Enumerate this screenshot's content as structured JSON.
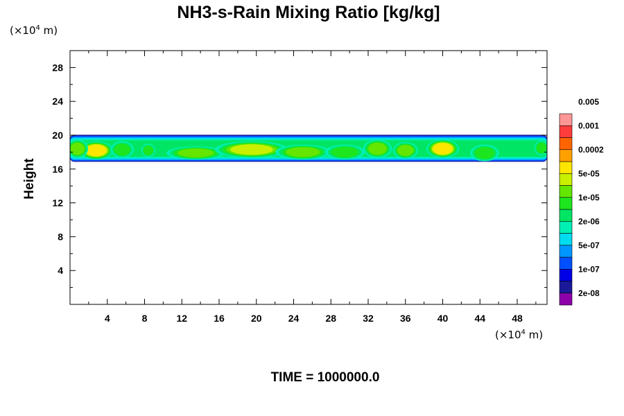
{
  "chart_data": {
    "type": "heatmap",
    "title": "NH3-s-Rain Mixing Ratio [kg/kg]",
    "ylabel": "Height",
    "xlabel": "",
    "x_unit": {
      "prefix": "(×10",
      "exp": "4",
      "suffix": " m)"
    },
    "y_unit": {
      "prefix": "(×10",
      "exp": "4",
      "suffix": " m)"
    },
    "xlim": [
      0,
      51.2
    ],
    "ylim": [
      0,
      30
    ],
    "x_ticks": [
      4,
      8,
      12,
      16,
      20,
      24,
      28,
      32,
      36,
      40,
      44,
      48
    ],
    "y_ticks": [
      4,
      8,
      12,
      16,
      20,
      24,
      28
    ],
    "x_minor_step": 2,
    "y_minor_step": 2,
    "colorbar": {
      "colors": [
        "#8c00aa",
        "#1a1a99",
        "#0000e6",
        "#0050ff",
        "#0096ff",
        "#00dcf0",
        "#00f0b4",
        "#00e664",
        "#1ee61e",
        "#64e600",
        "#c8f000",
        "#ffe600",
        "#ffa000",
        "#ff6400",
        "#ff3c3c",
        "#ff9696"
      ],
      "labels": [
        "2e-08",
        "1e-07",
        "5e-07",
        "2e-06",
        "1e-05",
        "5e-05",
        "0.0002",
        "0.001",
        "0.005"
      ]
    },
    "layer": {
      "bottom_height": 17.2,
      "top_height": 19.6,
      "peak_value": "5e-05",
      "cells": [
        {
          "x": 2.8,
          "y": 18.2,
          "rx": 1.7,
          "ry": 1.0,
          "level": 11
        },
        {
          "x": 0.8,
          "y": 18.4,
          "rx": 1.0,
          "ry": 1.0,
          "level": 9
        },
        {
          "x": 5.6,
          "y": 18.3,
          "rx": 1.1,
          "ry": 0.9,
          "level": 8
        },
        {
          "x": 8.4,
          "y": 18.2,
          "rx": 0.6,
          "ry": 0.7,
          "level": 8
        },
        {
          "x": 13.5,
          "y": 17.9,
          "rx": 3.0,
          "ry": 0.7,
          "level": 9
        },
        {
          "x": 19.5,
          "y": 18.3,
          "rx": 3.8,
          "ry": 0.9,
          "level": 10
        },
        {
          "x": 25.0,
          "y": 18.0,
          "rx": 2.8,
          "ry": 0.8,
          "level": 9
        },
        {
          "x": 29.5,
          "y": 18.0,
          "rx": 2.0,
          "ry": 0.8,
          "level": 8
        },
        {
          "x": 33.0,
          "y": 18.4,
          "rx": 1.4,
          "ry": 1.0,
          "level": 9
        },
        {
          "x": 36.0,
          "y": 18.2,
          "rx": 1.2,
          "ry": 0.9,
          "level": 9
        },
        {
          "x": 40.0,
          "y": 18.4,
          "rx": 1.6,
          "ry": 1.0,
          "level": 11
        },
        {
          "x": 44.5,
          "y": 17.9,
          "rx": 1.4,
          "ry": 0.9,
          "level": 8
        },
        {
          "x": 50.6,
          "y": 18.5,
          "rx": 0.6,
          "ry": 0.8,
          "level": 8
        }
      ]
    }
  },
  "footer": {
    "time_label": "TIME = 1000000.0"
  }
}
